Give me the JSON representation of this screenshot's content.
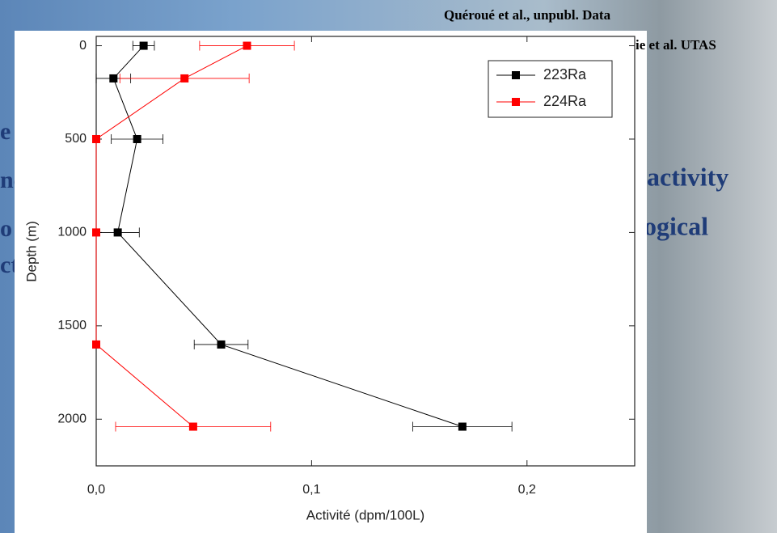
{
  "slide": {
    "credit_1": "Quéroué et al., unpubl. Data",
    "credit_2": "ie et al. UTAS",
    "fragments": [
      "e",
      "nc",
      "o",
      "ct",
      "activity",
      "ogical"
    ]
  },
  "chart_data": {
    "type": "scatter-line",
    "xlabel": "Activité (dpm/100L)",
    "ylabel": "Depth (m)",
    "xlim": [
      0,
      0.25
    ],
    "ylim": [
      2250,
      -50
    ],
    "xticks": [
      {
        "value": 0,
        "label": "0,0"
      },
      {
        "value": 0.1,
        "label": "0,1"
      },
      {
        "value": 0.2,
        "label": "0,2"
      }
    ],
    "yticks": [
      0,
      500,
      1000,
      1500,
      2000
    ],
    "legend": "upper right",
    "series": [
      {
        "name": "223Ra",
        "color": "#000000",
        "x": [
          0.022,
          0.008,
          0.019,
          0.01,
          0.058,
          0.17
        ],
        "y": [
          0,
          175,
          500,
          1000,
          1600,
          2040
        ],
        "xerr": [
          0.005,
          0.008,
          0.012,
          0.01,
          0.0125,
          0.023
        ]
      },
      {
        "name": "224Ra",
        "color": "#ff0000",
        "x": [
          0.07,
          0.041,
          0,
          0,
          0,
          0.045
        ],
        "y": [
          0,
          175,
          500,
          1000,
          1600,
          2040
        ],
        "xerr": [
          0.022,
          0.03,
          0,
          0,
          0,
          0.036
        ]
      }
    ]
  }
}
